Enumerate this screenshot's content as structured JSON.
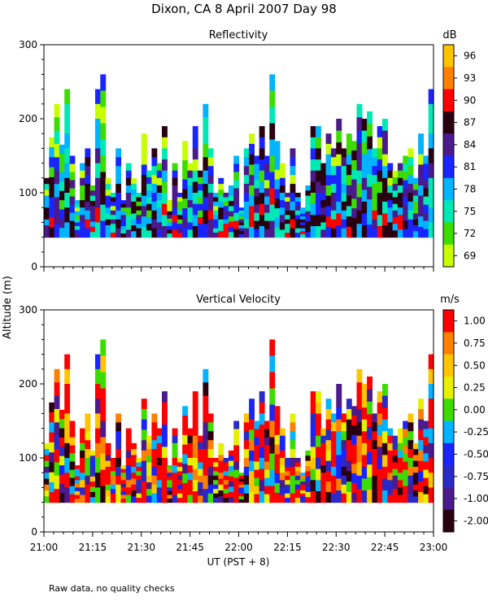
{
  "title": "Dixon, CA   8 April 2007   Day  98",
  "ylabel": "Altitude (m)",
  "xlabel": "UT  (PST + 8)",
  "footnote": "Raw data, no quality checks",
  "x_ticks": [
    "21:00",
    "21:15",
    "21:30",
    "21:45",
    "22:00",
    "22:15",
    "22:30",
    "22:45",
    "23:00"
  ],
  "y_ticks": [
    "0",
    "100",
    "200",
    "300"
  ],
  "chart_data": [
    {
      "type": "heatmap",
      "title": "Reflectivity",
      "units": "dB",
      "xlim_ut": [
        "21:00",
        "23:00"
      ],
      "ylim": [
        0,
        300
      ],
      "data_floor_m": 40,
      "colorbar_ticks": [
        "96",
        "93",
        "90",
        "87",
        "84",
        "81",
        "78",
        "75",
        "72",
        "69"
      ],
      "colorbar_colors": [
        "#ffc400",
        "#ff8000",
        "#ff0000",
        "#2a0010",
        "#4b1a8c",
        "#1a24ff",
        "#00b4ff",
        "#00e8b4",
        "#3cdc00",
        "#c8ff00"
      ],
      "layer_top_m": [
        120,
        175,
        220,
        165,
        240,
        150,
        90,
        140,
        160,
        110,
        240,
        260,
        120,
        100,
        160,
        90,
        140,
        120,
        100,
        180,
        130,
        160,
        140,
        190,
        90,
        140,
        100,
        170,
        140,
        190,
        130,
        220,
        160,
        100,
        120,
        100,
        110,
        150,
        80,
        160,
        180,
        150,
        190,
        150,
        260,
        170,
        140,
        100,
        160,
        100,
        80,
        110,
        190,
        190,
        140,
        180,
        160,
        200,
        160,
        180,
        170,
        220,
        200,
        210,
        160,
        190,
        200,
        140,
        130,
        140,
        150,
        160,
        120,
        180,
        150,
        240
      ]
    },
    {
      "type": "heatmap",
      "title": "Vertical Velocity",
      "units": "m/s",
      "xlim_ut": [
        "21:00",
        "23:00"
      ],
      "ylim": [
        0,
        300
      ],
      "data_floor_m": 40,
      "colorbar_ticks": [
        "1.00",
        "0.75",
        "0.50",
        "0.25",
        "0.00",
        "-0.25",
        "-0.50",
        "-0.75",
        "-1.00",
        "-2.00"
      ],
      "colorbar_colors": [
        "#ff0000",
        "#ff8000",
        "#ffc400",
        "#e6f000",
        "#3cdc00",
        "#00b4ff",
        "#1a24ff",
        "#2a2ac8",
        "#4b1a8c",
        "#2a0010"
      ],
      "layer_top_m": [
        120,
        175,
        220,
        165,
        240,
        150,
        90,
        140,
        160,
        110,
        240,
        260,
        120,
        100,
        160,
        90,
        140,
        120,
        100,
        180,
        130,
        160,
        140,
        190,
        90,
        140,
        100,
        170,
        140,
        190,
        130,
        220,
        160,
        100,
        120,
        100,
        110,
        150,
        80,
        160,
        180,
        150,
        190,
        150,
        260,
        170,
        140,
        100,
        160,
        100,
        80,
        110,
        190,
        190,
        140,
        180,
        160,
        200,
        160,
        180,
        170,
        220,
        200,
        210,
        160,
        190,
        200,
        140,
        130,
        140,
        150,
        160,
        120,
        180,
        150,
        240
      ]
    }
  ]
}
